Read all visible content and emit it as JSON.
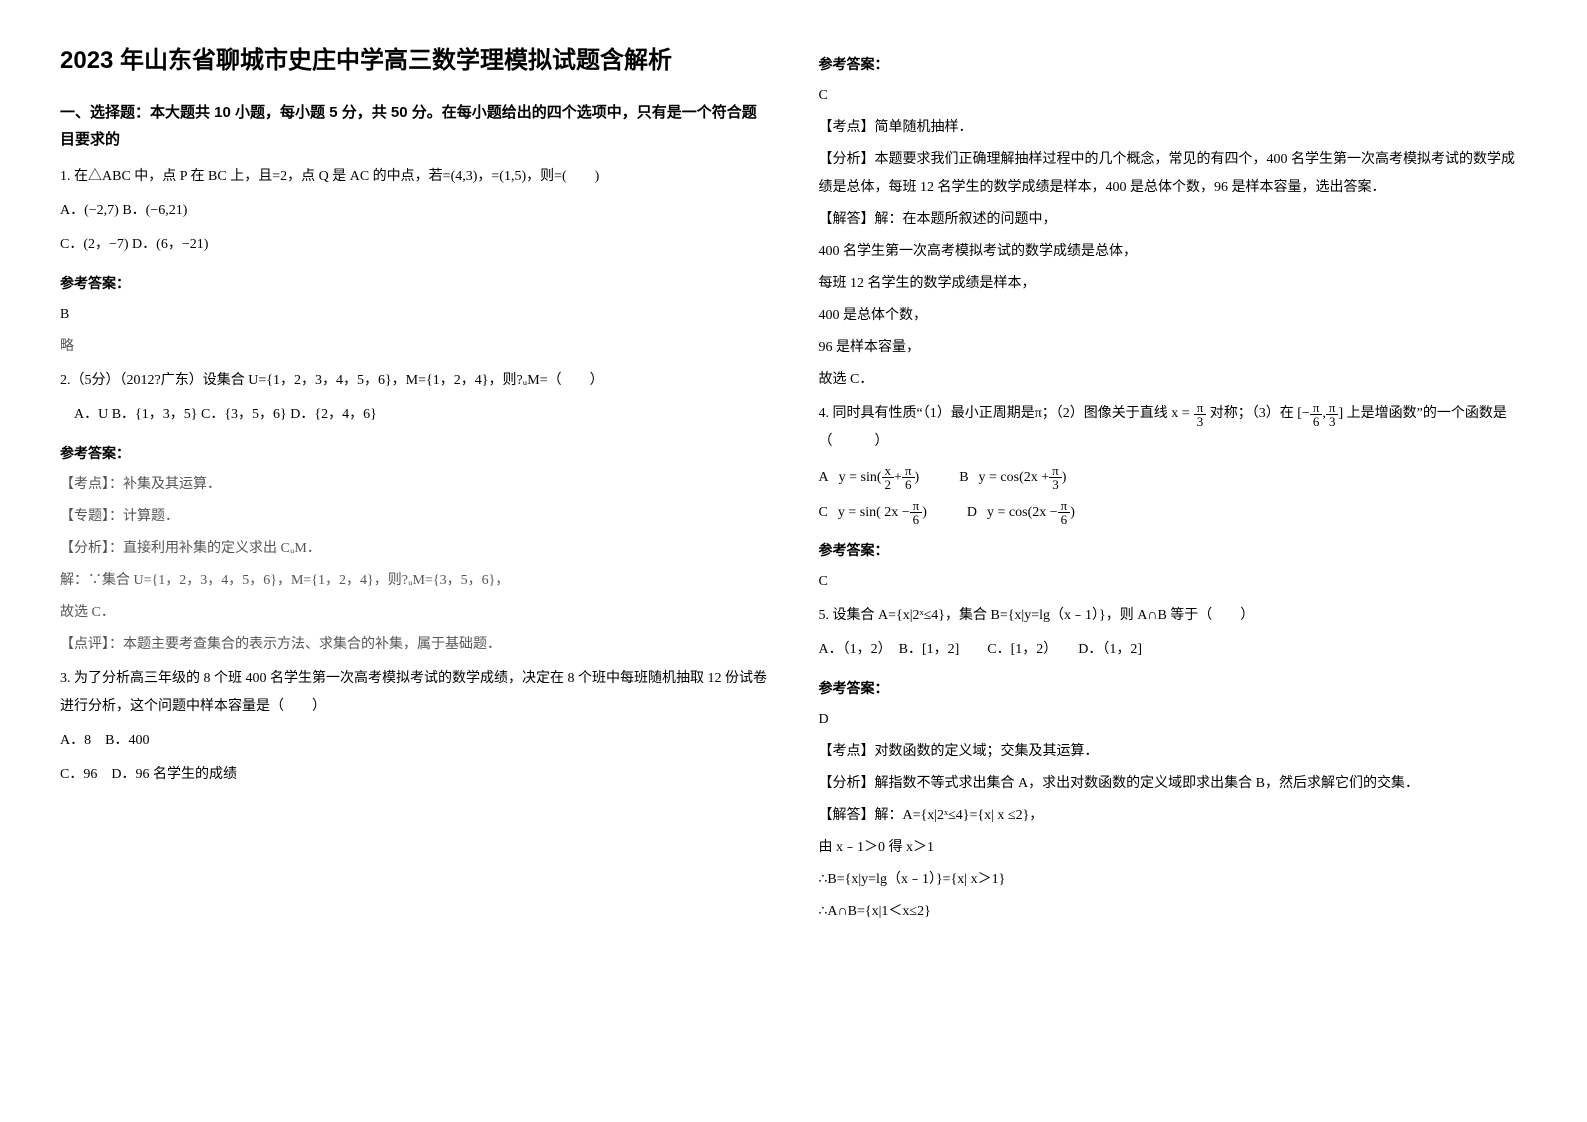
{
  "title": "2023 年山东省聊城市史庄中学高三数学理模拟试题含解析",
  "left": {
    "section1": "一、选择题：本大题共 10 小题，每小题 5 分，共 50 分。在每小题给出的四个选项中，只有是一个符合题目要求的",
    "q1": {
      "text": "1. 在△ABC 中，点 P 在 BC 上，且=2，点 Q 是 AC 的中点，若=(4,3)，=(1,5)，则=(　　)",
      "optA": "A．(−2,7)  B．(−6,21)",
      "optC": "C．(2，−7)  D．(6，−21)",
      "ans_label": "参考答案：",
      "ans": "B",
      "note": "略"
    },
    "q2": {
      "text": "2.（5分）（2012?广东）设集合 U={1，2，3，4，5，6}，M={1，2，4}，则?ᵤM=（　　）",
      "opts": "　A．U  B．{1，3，5}  C．{3，5，6}  D．{2，4，6}",
      "ans_label": "参考答案：",
      "l1": "【考点】：补集及其运算．",
      "l2": "【专题】：计算题．",
      "l3": "【分析】：直接利用补集的定义求出 CᵤM．",
      "l4": "解：∵集合 U={1，2，3，4，5，6}，M={1，2，4}，则?ᵤM={3，5，6}，",
      "l5": "故选 C．",
      "l6": "【点评】：本题主要考查集合的表示方法、求集合的补集，属于基础题．"
    },
    "q3": {
      "text1": "3. 为了分析高三年级的 8 个班 400 名学生第一次高考模拟考试的数学成绩，决定在 8 个班中每班随机抽取 12 份试卷进行分析，这个问题中样本容量是（　　）",
      "optA": "A．8　B．400",
      "optC": "C．96　D．96 名学生的成绩"
    }
  },
  "right": {
    "q3ans": {
      "label": "参考答案：",
      "ans": "C",
      "l1": "【考点】简单随机抽样．",
      "l2": "【分析】本题要求我们正确理解抽样过程中的几个概念，常见的有四个，400 名学生第一次高考模拟考试的数学成绩是总体，每班 12 名学生的数学成绩是样本，400 是总体个数，96 是样本容量，选出答案．",
      "l3": "【解答】解：在本题所叙述的问题中，",
      "l4": "400 名学生第一次高考模拟考试的数学成绩是总体，",
      "l5": "每班 12 名学生的数学成绩是样本，",
      "l6": "400 是总体个数，",
      "l7": "96 是样本容量，",
      "l8": "故选 C．"
    },
    "q4": {
      "prefix": "4. 同时具有性质“（1）最小正周期是π；（2）图像关于直线",
      "mid1": "对称；（3）在",
      "suffix": "上是增函数”的一个函数是（　　　）",
      "xeq": "x =",
      "pi1_n": "π",
      "pi1_d": "3",
      "range_open": "[−",
      "r1_n": "π",
      "r1_d": "6",
      "comma": ",",
      "r2_n": "π",
      "r2_d": "3",
      "range_close": "]",
      "optA_pre": "A",
      "optA_y": "y = sin(",
      "optA_f1n": "x",
      "optA_f1d": "2",
      "optA_plus": " + ",
      "optA_f2n": "π",
      "optA_f2d": "6",
      "optA_close": ")",
      "optB_pre": "B",
      "optB_y": "y = cos(2x + ",
      "optB_fn": "π",
      "optB_fd": "3",
      "optB_close": ")",
      "optC_pre": "C",
      "optC_y": "y = sin( 2x − ",
      "optC_fn": "π",
      "optC_fd": "6",
      "optC_close": ")",
      "optD_pre": "D",
      "optD_y": "y = cos(2x − ",
      "optD_fn": "π",
      "optD_fd": "6",
      "optD_close": ")",
      "ans_label": "参考答案：",
      "ans": "C"
    },
    "q5": {
      "text": "5. 设集合 A={x|2ˣ≤4}，集合 B={x|y=lg（x﹣1）}，则 A∩B 等于（　　）",
      "opts": "A．（1，2）　B．[1，2]　　C．[1，2）　　D．（1，2]",
      "ans_label": "参考答案：",
      "ans": "D",
      "l1": "【考点】对数函数的定义域；交集及其运算．",
      "l2": "【分析】解指数不等式求出集合 A，求出对数函数的定义域即求出集合 B，然后求解它们的交集．",
      "l3": "【解答】解：A={x|2ˣ≤4}={x| x ≤2}，",
      "l4": "由 x﹣1＞0 得 x＞1",
      "l5": "∴B={x|y=lg（x﹣1）}={x| x＞1}",
      "l6": "∴A∩B={x|1＜x≤2}"
    }
  }
}
